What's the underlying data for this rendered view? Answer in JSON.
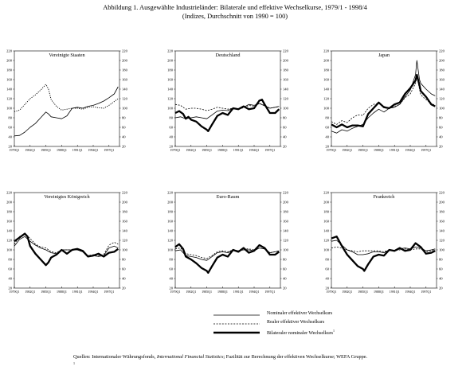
{
  "title": {
    "line1": "Abbildung 1. Ausgewählte Industrieländer: Bilaterale und effektive Wechselkurse, 1979/1 - 1998/4",
    "line2": "(Indizes, Durchschnitt von 1990 = 100)"
  },
  "chart_data": [
    {
      "type": "line",
      "title": "Vereinigte Staaten",
      "ylim": [
        20,
        220
      ],
      "yticks": [
        20,
        40,
        60,
        80,
        100,
        120,
        140,
        160,
        180,
        200,
        220
      ],
      "xlim": [
        1979.0,
        1999.0
      ],
      "xticks": [
        "1979Q1",
        "1982Q1",
        "1985Q1",
        "1988Q1",
        "1991Q1",
        "1994Q1",
        "1997Q1"
      ],
      "series": [
        {
          "name": "Nominaler effektiver Wechselkurs",
          "style": "thin",
          "x": [
            1979,
            1980,
            1981,
            1982,
            1983,
            1984,
            1985,
            1985.5,
            1986,
            1987,
            1988,
            1989,
            1990,
            1991,
            1992,
            1993,
            1994,
            1995,
            1996,
            1997,
            1998,
            1998.75
          ],
          "y": [
            42,
            43,
            50,
            60,
            68,
            80,
            92,
            88,
            82,
            80,
            78,
            84,
            100,
            102,
            100,
            104,
            106,
            110,
            115,
            122,
            130,
            145
          ]
        },
        {
          "name": "Realer effektiver Wechselkurs",
          "style": "dotted",
          "x": [
            1979,
            1980,
            1981,
            1982,
            1983,
            1984,
            1985,
            1985.5,
            1986,
            1987,
            1988,
            1989,
            1990,
            1991,
            1992,
            1993,
            1994,
            1995,
            1996,
            1997,
            1998,
            1998.75
          ],
          "y": [
            93,
            96,
            108,
            120,
            128,
            138,
            150,
            140,
            118,
            104,
            96,
            98,
            100,
            100,
            98,
            102,
            103,
            101,
            100,
            106,
            114,
            120
          ]
        }
      ]
    },
    {
      "type": "line",
      "title": "Deutschland",
      "ylim": [
        20,
        220
      ],
      "yticks": [
        20,
        40,
        60,
        80,
        100,
        120,
        140,
        160,
        180,
        200,
        220
      ],
      "xlim": [
        1979.0,
        1999.0
      ],
      "xticks": [
        "1979Q1",
        "1982Q1",
        "1985Q1",
        "1988Q1",
        "1991Q1",
        "1994Q1",
        "1997Q1"
      ],
      "series": [
        {
          "name": "Nominaler effektiver Wechselkurs",
          "style": "thin",
          "x": [
            1979,
            1980,
            1981,
            1982,
            1983,
            1984,
            1985,
            1986,
            1987,
            1988,
            1989,
            1990,
            1991,
            1992,
            1993,
            1994,
            1995,
            1996,
            1997,
            1998,
            1998.75
          ],
          "y": [
            80,
            82,
            78,
            80,
            82,
            80,
            78,
            86,
            94,
            96,
            95,
            100,
            98,
            102,
            108,
            106,
            110,
            105,
            100,
            102,
            104
          ]
        },
        {
          "name": "Realer effektiver Wechselkurs",
          "style": "dashed",
          "x": [
            1979,
            1980,
            1981,
            1982,
            1983,
            1984,
            1985,
            1986,
            1987,
            1988,
            1989,
            1990,
            1991,
            1992,
            1993,
            1994,
            1995,
            1996,
            1997,
            1998,
            1998.75
          ],
          "y": [
            108,
            106,
            98,
            100,
            100,
            98,
            95,
            98,
            102,
            100,
            98,
            100,
            98,
            101,
            106,
            104,
            110,
            106,
            100,
            102,
            103
          ]
        },
        {
          "name": "Bilateraler nominaler Wechselkurs",
          "style": "thick",
          "x": [
            1979,
            1979.75,
            1980.5,
            1981,
            1981.5,
            1982,
            1983,
            1984,
            1985,
            1985.25,
            1986,
            1987,
            1988,
            1989,
            1990,
            1991,
            1992,
            1993,
            1994,
            1995,
            1995.5,
            1996,
            1997,
            1998,
            1998.75
          ],
          "y": [
            90,
            94,
            88,
            78,
            82,
            76,
            72,
            62,
            55,
            52,
            66,
            84,
            90,
            86,
            100,
            98,
            104,
            98,
            100,
            116,
            118,
            108,
            90,
            90,
            98
          ]
        }
      ]
    },
    {
      "type": "line",
      "title": "Japan",
      "ylim": [
        20,
        220
      ],
      "yticks": [
        20,
        40,
        60,
        80,
        100,
        120,
        140,
        160,
        180,
        200,
        220
      ],
      "xlim": [
        1979.0,
        1999.0
      ],
      "xticks": [
        "1979Q1",
        "1982Q1",
        "1985Q1",
        "1988Q1",
        "1991Q1",
        "1994Q1",
        "1997Q1"
      ],
      "series": [
        {
          "name": "Nominaler effektiver Wechselkurs",
          "style": "thin",
          "x": [
            1979,
            1980,
            1981,
            1982,
            1983,
            1984,
            1985,
            1986,
            1987,
            1988,
            1989,
            1990,
            1991,
            1992,
            1993,
            1994,
            1995,
            1995.25,
            1995.75,
            1996,
            1997,
            1998,
            1998.75
          ],
          "y": [
            52,
            48,
            55,
            52,
            58,
            62,
            66,
            80,
            90,
            98,
            92,
            100,
            102,
            108,
            124,
            138,
            170,
            200,
            160,
            152,
            140,
            130,
            126
          ]
        },
        {
          "name": "Realer effektiver Wechselkurs",
          "style": "dashed",
          "x": [
            1979,
            1980,
            1981,
            1982,
            1983,
            1984,
            1985,
            1986,
            1987,
            1988,
            1989,
            1990,
            1991,
            1992,
            1993,
            1994,
            1995,
            1995.25,
            1995.75,
            1996,
            1997,
            1998,
            1998.75
          ],
          "y": [
            72,
            66,
            74,
            70,
            80,
            86,
            85,
            100,
            108,
            110,
            104,
            100,
            104,
            108,
            122,
            130,
            152,
            168,
            140,
            128,
            118,
            110,
            106
          ]
        },
        {
          "name": "Bilateraler nominaler Wechselkurs",
          "style": "thick",
          "x": [
            1979,
            1980,
            1981,
            1982,
            1983,
            1984,
            1985,
            1986,
            1987,
            1988,
            1989,
            1990,
            1991,
            1992,
            1993,
            1994,
            1995,
            1995.25,
            1995.75,
            1996,
            1997,
            1998,
            1998.75
          ],
          "y": [
            66,
            60,
            66,
            60,
            64,
            64,
            62,
            88,
            100,
            112,
            102,
            100,
            108,
            112,
            130,
            142,
            158,
            170,
            148,
            136,
            124,
            108,
            104
          ]
        }
      ]
    },
    {
      "type": "line",
      "title": "Vereinigtes Königreich",
      "ylim": [
        20,
        220
      ],
      "yticks": [
        20,
        40,
        60,
        80,
        100,
        120,
        140,
        160,
        180,
        200,
        220
      ],
      "xlim": [
        1979.0,
        1999.0
      ],
      "xticks": [
        "1979Q1",
        "1982Q1",
        "1985Q1",
        "1988Q1",
        "1991Q1",
        "1994Q1",
        "1997Q1"
      ],
      "series": [
        {
          "name": "Nominaler effektiver Wechselkurs",
          "style": "thin",
          "x": [
            1979,
            1980,
            1981,
            1982,
            1983,
            1984,
            1985,
            1986,
            1987,
            1988,
            1989,
            1990,
            1991,
            1992,
            1993,
            1994,
            1995,
            1996,
            1997,
            1998,
            1998.75
          ],
          "y": [
            108,
            122,
            128,
            118,
            110,
            104,
            100,
            94,
            92,
            100,
            100,
            100,
            100,
            96,
            88,
            88,
            86,
            88,
            104,
            108,
            104
          ]
        },
        {
          "name": "Realer effektiver Wechselkurs",
          "style": "dashed",
          "x": [
            1979,
            1980,
            1981,
            1982,
            1983,
            1984,
            1985,
            1986,
            1987,
            1988,
            1989,
            1990,
            1991,
            1992,
            1993,
            1994,
            1995,
            1996,
            1997,
            1998,
            1998.75
          ],
          "y": [
            112,
            128,
            134,
            124,
            112,
            106,
            104,
            96,
            94,
            100,
            100,
            100,
            100,
            96,
            88,
            90,
            88,
            90,
            110,
            116,
            112
          ]
        },
        {
          "name": "Bilateraler nominaler Wechselkurs",
          "style": "thick",
          "x": [
            1979,
            1980,
            1981,
            1981.5,
            1982,
            1983,
            1984,
            1985,
            1985.5,
            1986,
            1987,
            1988,
            1989,
            1990,
            1991,
            1992,
            1993,
            1994,
            1995,
            1996,
            1997,
            1998,
            1998.75
          ],
          "y": [
            118,
            126,
            134,
            128,
            108,
            92,
            80,
            68,
            74,
            84,
            90,
            100,
            92,
            100,
            102,
            98,
            86,
            88,
            92,
            86,
            94,
            96,
            102
          ]
        }
      ]
    },
    {
      "type": "line",
      "title": "Euro-Raum",
      "ylim": [
        20,
        220
      ],
      "yticks": [
        20,
        40,
        60,
        80,
        100,
        120,
        140,
        160,
        180,
        200,
        220
      ],
      "xlim": [
        1979.0,
        1999.0
      ],
      "xticks": [
        "1979Q1",
        "1982Q1",
        "1985Q1",
        "1988Q1",
        "1991Q1",
        "1994Q1",
        "1997Q1"
      ],
      "series": [
        {
          "name": "Nominaler effektiver Wechselkurs",
          "style": "thin",
          "x": [
            1979,
            1980,
            1981,
            1982,
            1983,
            1984,
            1985,
            1986,
            1987,
            1988,
            1989,
            1990,
            1991,
            1992,
            1993,
            1994,
            1995,
            1996,
            1997,
            1998,
            1998.75
          ],
          "y": [
            98,
            100,
            88,
            86,
            84,
            80,
            78,
            86,
            94,
            96,
            94,
            100,
            98,
            100,
            100,
            98,
            104,
            102,
            94,
            96,
            98
          ]
        },
        {
          "name": "Realer effektiver Wechselkurs",
          "style": "dashed",
          "x": [
            1979,
            1980,
            1981,
            1982,
            1983,
            1984,
            1985,
            1986,
            1987,
            1988,
            1989,
            1990,
            1991,
            1992,
            1993,
            1994,
            1995,
            1996,
            1997,
            1998,
            1998.75
          ],
          "y": [
            102,
            104,
            92,
            90,
            88,
            84,
            82,
            88,
            96,
            98,
            96,
            100,
            98,
            102,
            102,
            100,
            104,
            102,
            94,
            96,
            98
          ]
        },
        {
          "name": "Bilateraler nominaler Wechselkurs",
          "style": "thick",
          "x": [
            1979,
            1979.75,
            1980.5,
            1981,
            1982,
            1983,
            1984,
            1985,
            1985.25,
            1986,
            1987,
            1988,
            1989,
            1990,
            1991,
            1992,
            1993,
            1994,
            1995,
            1996,
            1997,
            1998,
            1998.75
          ],
          "y": [
            106,
            112,
            102,
            86,
            80,
            72,
            62,
            56,
            52,
            66,
            84,
            90,
            86,
            100,
            96,
            104,
            94,
            98,
            110,
            104,
            90,
            90,
            96
          ]
        }
      ]
    },
    {
      "type": "line",
      "title": "Frankreich",
      "ylim": [
        20,
        220
      ],
      "yticks": [
        20,
        40,
        60,
        80,
        100,
        120,
        140,
        160,
        180,
        200,
        220
      ],
      "xlim": [
        1979.0,
        1999.0
      ],
      "xticks": [
        "1979Q1",
        "1982Q1",
        "1985Q1",
        "1988Q1",
        "1991Q1",
        "1994Q1",
        "1997Q1"
      ],
      "series": [
        {
          "name": "Nominaler effektiver Wechselkurs",
          "style": "thin",
          "x": [
            1979,
            1980,
            1981,
            1982,
            1983,
            1984,
            1985,
            1986,
            1987,
            1988,
            1989,
            1990,
            1991,
            1992,
            1993,
            1994,
            1995,
            1996,
            1997,
            1998,
            1998.75
          ],
          "y": [
            118,
            120,
            110,
            100,
            96,
            90,
            90,
            92,
            96,
            96,
            94,
            100,
            98,
            102,
            104,
            102,
            106,
            104,
            98,
            100,
            102
          ]
        },
        {
          "name": "Realer effektiver Wechselkurs",
          "style": "dashed",
          "x": [
            1979,
            1980,
            1981,
            1982,
            1983,
            1984,
            1985,
            1986,
            1987,
            1988,
            1989,
            1990,
            1991,
            1992,
            1993,
            1994,
            1995,
            1996,
            1997,
            1998,
            1998.75
          ],
          "y": [
            104,
            106,
            104,
            100,
            98,
            96,
            98,
            98,
            98,
            98,
            96,
            100,
            98,
            100,
            102,
            100,
            102,
            102,
            96,
            98,
            100
          ]
        },
        {
          "name": "Bilateraler nominaler Wechselkurs",
          "style": "thick",
          "x": [
            1979,
            1980,
            1981,
            1982,
            1983,
            1984,
            1985,
            1985.25,
            1986,
            1987,
            1988,
            1989,
            1990,
            1991,
            1992,
            1993,
            1994,
            1995,
            1996,
            1997,
            1998,
            1998.75
          ],
          "y": [
            124,
            128,
            108,
            90,
            78,
            66,
            60,
            56,
            70,
            86,
            90,
            88,
            100,
            98,
            104,
            98,
            100,
            114,
            106,
            92,
            94,
            98
          ]
        }
      ]
    }
  ],
  "legend": [
    {
      "label": "Nominaler effektiver Wechselkurs",
      "style": "thin"
    },
    {
      "label": "Realer effektiver Wechselkurs",
      "style": "dashed"
    },
    {
      "label": "Bilateraler nominaler Wechselkurs",
      "style": "thick",
      "superscript": "1"
    }
  ],
  "source": {
    "prefix": "Quellen: Internationaler Währungsfonds, ",
    "italic": "International Financial Statistics",
    "suffix": "; Fazilität zur Berechnung der effektiven Wechselkurse; WEFA Gruppe.",
    "footnote_marker": "1"
  }
}
